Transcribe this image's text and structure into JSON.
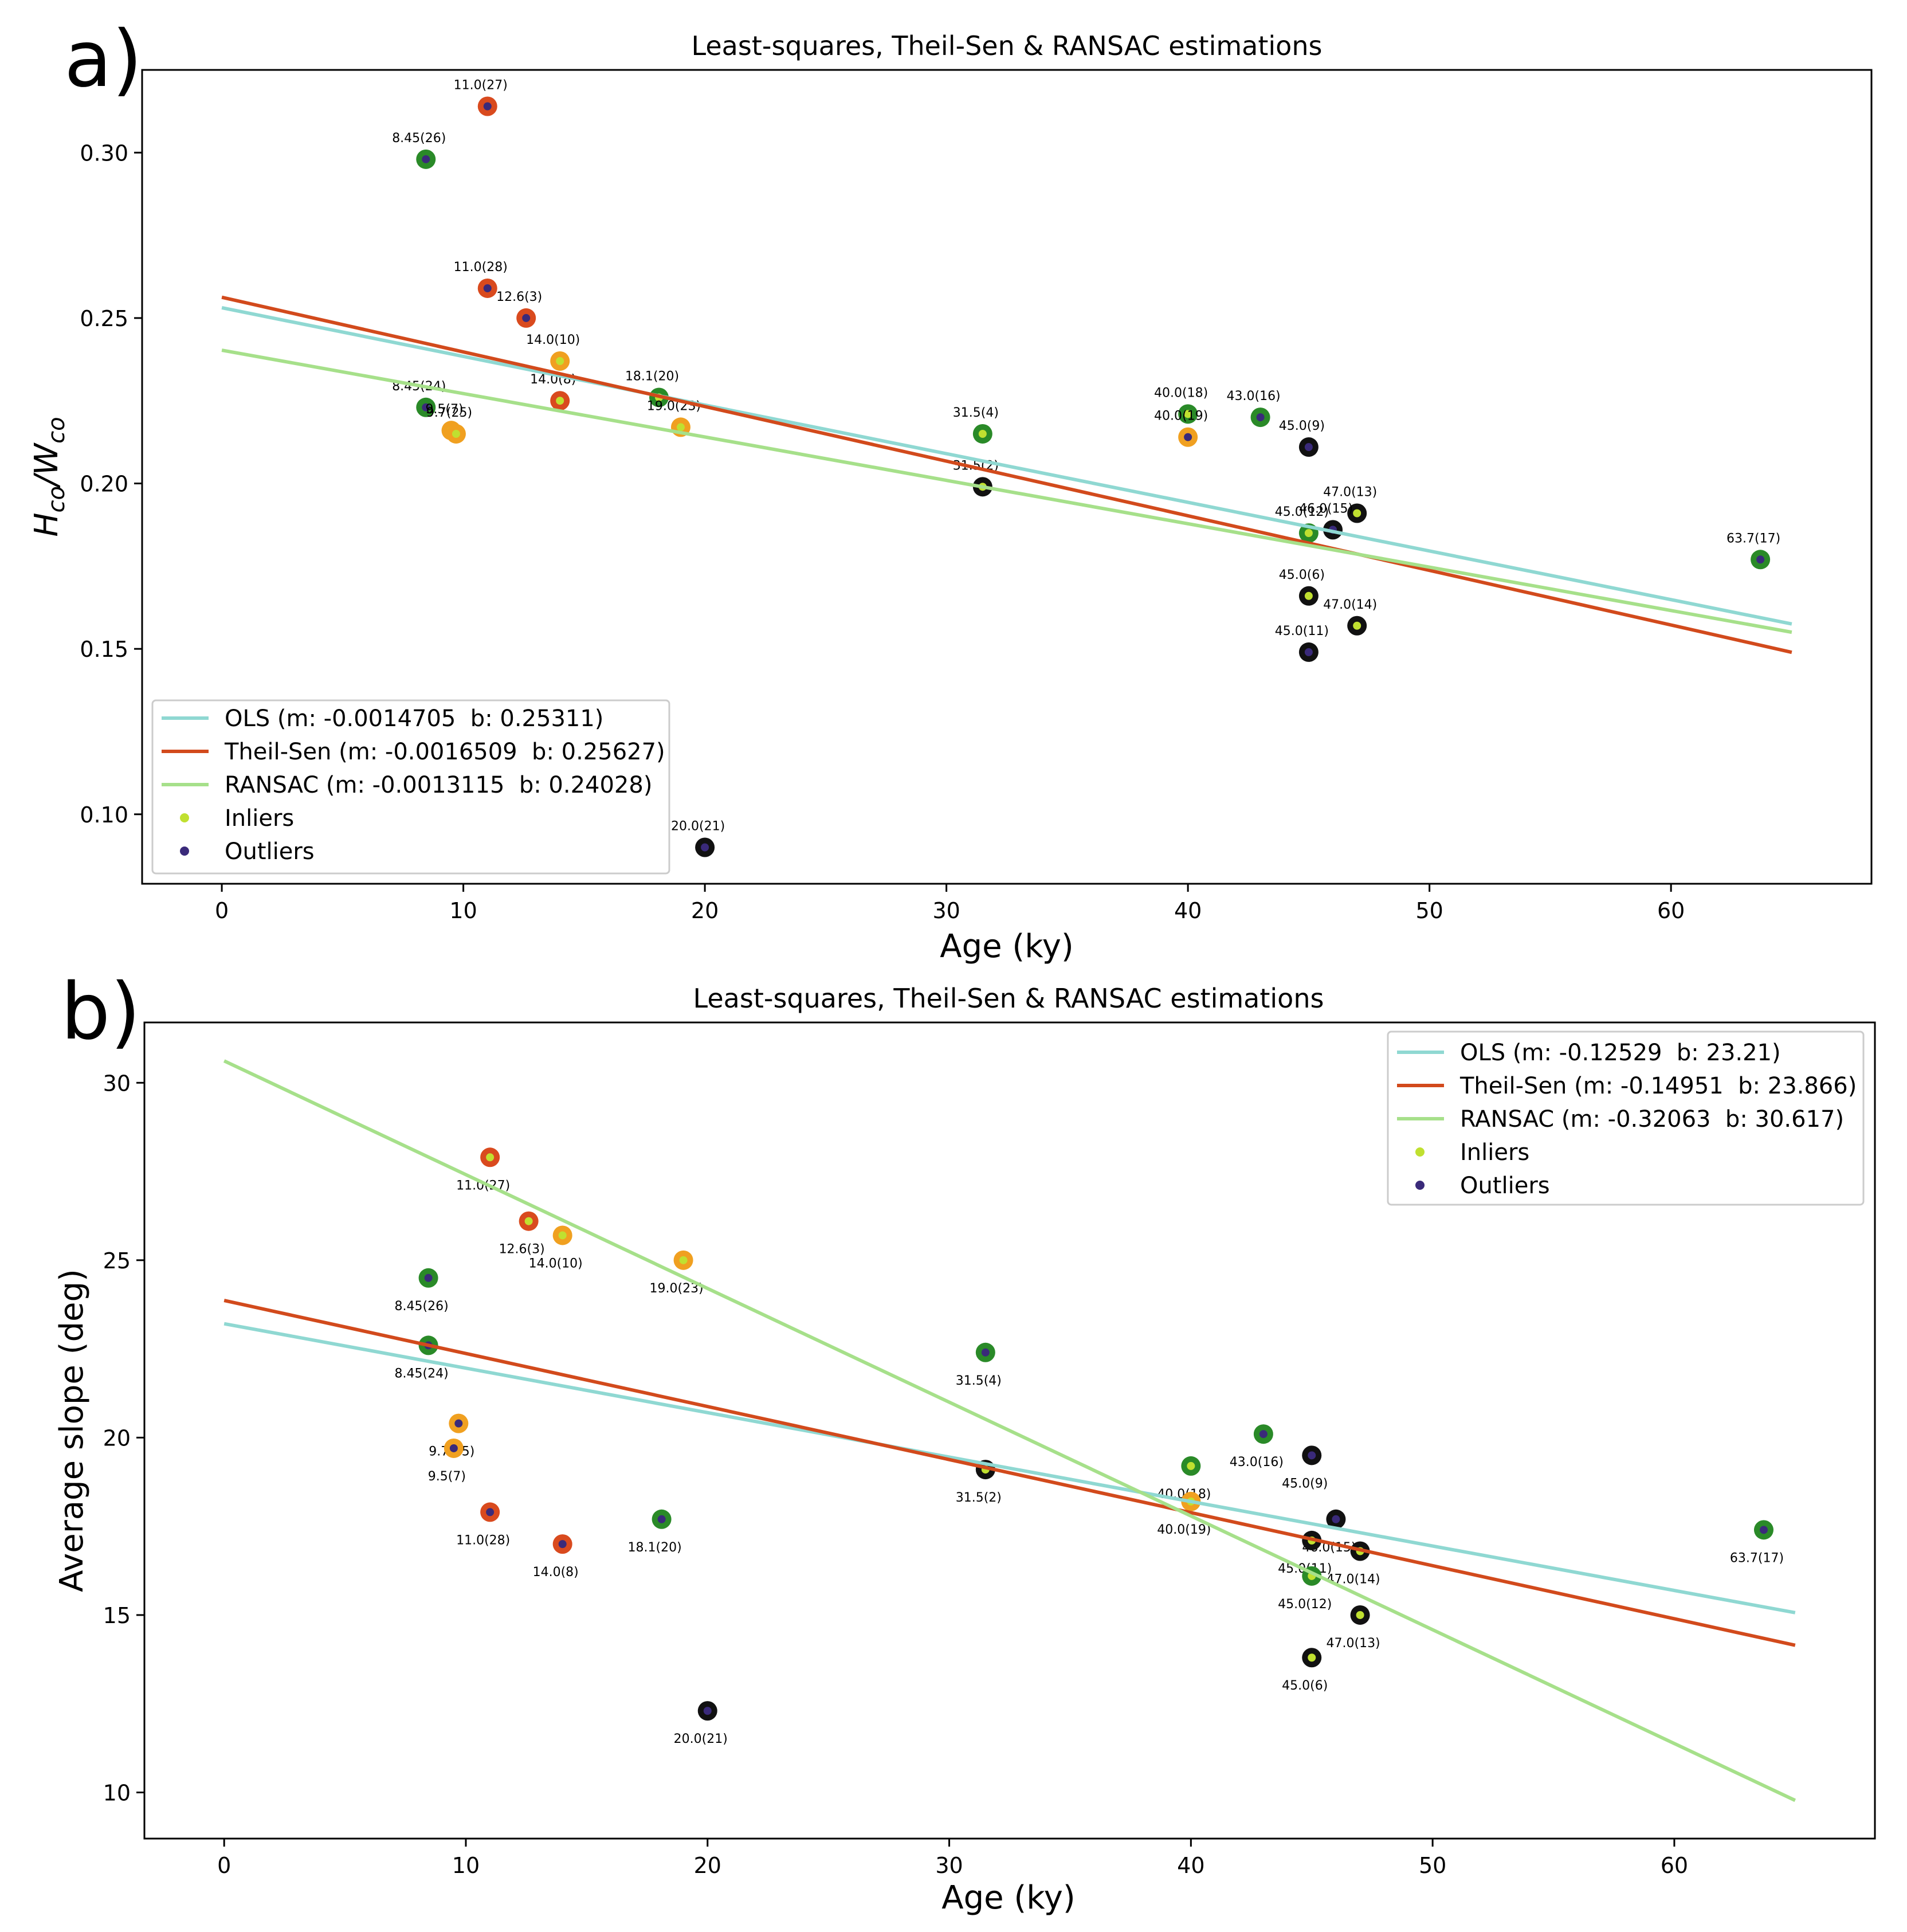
{
  "chart_data": [
    {
      "type": "scatter",
      "panel_label": "a)",
      "title": "Least-squares, Theil-Sen & RANSAC estimations",
      "xlabel": "Age (ky)",
      "ylabel": "H_co/W_co",
      "ylabel_parts": {
        "H": "H",
        "H_sub": "co",
        "slash": "/",
        "W": "W",
        "W_sub": "co"
      },
      "xlim": [
        -3.3,
        68.3
      ],
      "ylim": [
        0.079,
        0.325
      ],
      "xticks": [
        {
          "v": 0,
          "label": "0"
        },
        {
          "v": 10,
          "label": "10"
        },
        {
          "v": 20,
          "label": "20"
        },
        {
          "v": 30,
          "label": "30"
        },
        {
          "v": 40,
          "label": "40"
        },
        {
          "v": 50,
          "label": "50"
        },
        {
          "v": 60,
          "label": "60"
        }
      ],
      "yticks": [
        {
          "v": 0.1,
          "label": "0.10"
        },
        {
          "v": 0.15,
          "label": "0.15"
        },
        {
          "v": 0.2,
          "label": "0.20"
        },
        {
          "v": 0.25,
          "label": "0.25"
        },
        {
          "v": 0.3,
          "label": "0.30"
        }
      ],
      "lines": [
        {
          "name": "OLS",
          "legend": "OLS (m: -0.0014705  b: 0.25311)",
          "m": -0.0014705,
          "b": 0.25311,
          "x0": 0,
          "x1": 65,
          "color": "#8fd8d2"
        },
        {
          "name": "Theil-Sen",
          "legend": "Theil-Sen (m: -0.0016509  b: 0.25627)",
          "m": -0.0016509,
          "b": 0.25627,
          "x0": 0,
          "x1": 65,
          "color": "#d24a1c"
        },
        {
          "name": "RANSAC",
          "legend": "RANSAC (m: -0.0013115  b: 0.24028)",
          "m": -0.0013115,
          "b": 0.24028,
          "x0": 0,
          "x1": 65,
          "color": "#a6e08a"
        }
      ],
      "markers": [
        {
          "name": "Inliers",
          "label": "Inliers",
          "color": "#c0e030"
        },
        {
          "name": "Outliers",
          "label": "Outliers",
          "color": "#3a2a7a"
        }
      ],
      "legend_position": "lower-left",
      "points": [
        {
          "x": 11.0,
          "y": 0.314,
          "label": "11.0(27)",
          "ring": "#d94a1e",
          "dot": "outlier",
          "la": "above"
        },
        {
          "x": 8.45,
          "y": 0.298,
          "label": "8.45(26)",
          "ring": "#2a8a28",
          "dot": "outlier",
          "la": "above"
        },
        {
          "x": 11.0,
          "y": 0.259,
          "label": "11.0(28)",
          "ring": "#d94a1e",
          "dot": "outlier",
          "la": "above"
        },
        {
          "x": 12.6,
          "y": 0.25,
          "label": "12.6(3)",
          "ring": "#d94a1e",
          "dot": "outlier",
          "la": "above"
        },
        {
          "x": 14.0,
          "y": 0.237,
          "label": "14.0(10)",
          "ring": "#f0a020",
          "dot": "inlier",
          "la": "above"
        },
        {
          "x": 14.0,
          "y": 0.225,
          "label": "14.0(8)",
          "ring": "#d94a1e",
          "dot": "inlier",
          "la": "above"
        },
        {
          "x": 18.1,
          "y": 0.226,
          "label": "18.1(20)",
          "ring": "#2a8a28",
          "dot": "inlier",
          "la": "above"
        },
        {
          "x": 19.0,
          "y": 0.217,
          "label": "19.0(23)",
          "ring": "#f0a020",
          "dot": "inlier",
          "la": "above"
        },
        {
          "x": 8.45,
          "y": 0.223,
          "label": "8.45(24)",
          "ring": "#2a8a28",
          "dot": "outlier",
          "la": "above"
        },
        {
          "x": 9.5,
          "y": 0.216,
          "label": "9.5(7)",
          "ring": "#f0a020",
          "dot": "inlier",
          "la": "above"
        },
        {
          "x": 9.7,
          "y": 0.215,
          "label": "9.7(25)",
          "ring": "#f0a020",
          "dot": "inlier",
          "la": "above"
        },
        {
          "x": 31.5,
          "y": 0.215,
          "label": "31.5(4)",
          "ring": "#2a8a28",
          "dot": "inlier",
          "la": "above"
        },
        {
          "x": 31.5,
          "y": 0.199,
          "label": "31.5(2)",
          "ring": "#111111",
          "dot": "inlier",
          "la": "above"
        },
        {
          "x": 40.0,
          "y": 0.221,
          "label": "40.0(18)",
          "ring": "#2a8a28",
          "dot": "inlier",
          "la": "above"
        },
        {
          "x": 40.0,
          "y": 0.214,
          "label": "40.0(19)",
          "ring": "#f0a020",
          "dot": "outlier",
          "la": "above"
        },
        {
          "x": 43.0,
          "y": 0.22,
          "label": "43.0(16)",
          "ring": "#2a8a28",
          "dot": "outlier",
          "la": "above"
        },
        {
          "x": 45.0,
          "y": 0.211,
          "label": "45.0(9)",
          "ring": "#111111",
          "dot": "outlier",
          "la": "above"
        },
        {
          "x": 47.0,
          "y": 0.191,
          "label": "47.0(13)",
          "ring": "#111111",
          "dot": "inlier",
          "la": "above"
        },
        {
          "x": 45.0,
          "y": 0.185,
          "label": "45.0(12)",
          "ring": "#2a8a28",
          "dot": "inlier",
          "la": "above"
        },
        {
          "x": 46.0,
          "y": 0.186,
          "label": "46.0(15)",
          "ring": "#111111",
          "dot": "outlier",
          "la": "above"
        },
        {
          "x": 63.7,
          "y": 0.177,
          "label": "63.7(17)",
          "ring": "#2a8a28",
          "dot": "outlier",
          "la": "above"
        },
        {
          "x": 45.0,
          "y": 0.166,
          "label": "45.0(6)",
          "ring": "#111111",
          "dot": "inlier",
          "la": "above"
        },
        {
          "x": 47.0,
          "y": 0.157,
          "label": "47.0(14)",
          "ring": "#111111",
          "dot": "inlier",
          "la": "above"
        },
        {
          "x": 45.0,
          "y": 0.149,
          "label": "45.0(11)",
          "ring": "#111111",
          "dot": "outlier",
          "la": "above"
        },
        {
          "x": 20.0,
          "y": 0.09,
          "label": "20.0(21)",
          "ring": "#111111",
          "dot": "outlier",
          "la": "above"
        }
      ]
    },
    {
      "type": "scatter",
      "panel_label": "b)",
      "title": "Least-squares, Theil-Sen & RANSAC estimations",
      "xlabel": "Age (ky)",
      "ylabel": "Average slope (deg)",
      "xlim": [
        -3.3,
        68.3
      ],
      "ylim": [
        8.7,
        31.7
      ],
      "xticks": [
        {
          "v": 0,
          "label": "0"
        },
        {
          "v": 10,
          "label": "10"
        },
        {
          "v": 20,
          "label": "20"
        },
        {
          "v": 30,
          "label": "30"
        },
        {
          "v": 40,
          "label": "40"
        },
        {
          "v": 50,
          "label": "50"
        },
        {
          "v": 60,
          "label": "60"
        }
      ],
      "yticks": [
        {
          "v": 10,
          "label": "10"
        },
        {
          "v": 15,
          "label": "15"
        },
        {
          "v": 20,
          "label": "20"
        },
        {
          "v": 25,
          "label": "25"
        },
        {
          "v": 30,
          "label": "30"
        }
      ],
      "lines": [
        {
          "name": "OLS",
          "legend": "OLS (m: -0.12529  b: 23.21)",
          "m": -0.12529,
          "b": 23.21,
          "x0": 0,
          "x1": 65,
          "color": "#8fd8d2"
        },
        {
          "name": "Theil-Sen",
          "legend": "Theil-Sen (m: -0.14951  b: 23.866)",
          "m": -0.14951,
          "b": 23.866,
          "x0": 0,
          "x1": 65,
          "color": "#d24a1c"
        },
        {
          "name": "RANSAC",
          "legend": "RANSAC (m: -0.32063  b: 30.617)",
          "m": -0.32063,
          "b": 30.617,
          "x0": 0,
          "x1": 65,
          "color": "#a6e08a"
        }
      ],
      "markers": [
        {
          "name": "Inliers",
          "label": "Inliers",
          "color": "#c0e030"
        },
        {
          "name": "Outliers",
          "label": "Outliers",
          "color": "#3a2a7a"
        }
      ],
      "legend_position": "upper-right",
      "points": [
        {
          "x": 11.0,
          "y": 27.9,
          "label": "11.0(27)",
          "ring": "#d94a1e",
          "dot": "inlier",
          "la": "below"
        },
        {
          "x": 12.6,
          "y": 26.1,
          "label": "12.6(3)",
          "ring": "#d94a1e",
          "dot": "inlier",
          "la": "below"
        },
        {
          "x": 14.0,
          "y": 25.7,
          "label": "14.0(10)",
          "ring": "#f0a020",
          "dot": "inlier",
          "la": "below"
        },
        {
          "x": 19.0,
          "y": 25.0,
          "label": "19.0(23)",
          "ring": "#f0a020",
          "dot": "inlier",
          "la": "below"
        },
        {
          "x": 8.45,
          "y": 24.5,
          "label": "8.45(26)",
          "ring": "#2a8a28",
          "dot": "outlier",
          "la": "below"
        },
        {
          "x": 8.45,
          "y": 22.6,
          "label": "8.45(24)",
          "ring": "#2a8a28",
          "dot": "outlier",
          "la": "below"
        },
        {
          "x": 31.5,
          "y": 22.4,
          "label": "31.5(4)",
          "ring": "#2a8a28",
          "dot": "outlier",
          "la": "below"
        },
        {
          "x": 9.7,
          "y": 20.4,
          "label": "9.7(25)",
          "ring": "#f0a020",
          "dot": "outlier",
          "la": "below"
        },
        {
          "x": 9.5,
          "y": 19.7,
          "label": "9.5(7)",
          "ring": "#f0a020",
          "dot": "outlier",
          "la": "below"
        },
        {
          "x": 11.0,
          "y": 17.9,
          "label": "11.0(28)",
          "ring": "#d94a1e",
          "dot": "outlier",
          "la": "below"
        },
        {
          "x": 14.0,
          "y": 17.0,
          "label": "14.0(8)",
          "ring": "#d94a1e",
          "dot": "outlier",
          "la": "below"
        },
        {
          "x": 18.1,
          "y": 17.7,
          "label": "18.1(20)",
          "ring": "#2a8a28",
          "dot": "outlier",
          "la": "below"
        },
        {
          "x": 31.5,
          "y": 19.1,
          "label": "31.5(2)",
          "ring": "#111111",
          "dot": "inlier",
          "la": "below"
        },
        {
          "x": 40.0,
          "y": 19.2,
          "label": "40.0(18)",
          "ring": "#2a8a28",
          "dot": "inlier",
          "la": "below"
        },
        {
          "x": 40.0,
          "y": 18.2,
          "label": "40.0(19)",
          "ring": "#f0a020",
          "dot": "inlier",
          "la": "below"
        },
        {
          "x": 43.0,
          "y": 20.1,
          "label": "43.0(16)",
          "ring": "#2a8a28",
          "dot": "outlier",
          "la": "below"
        },
        {
          "x": 45.0,
          "y": 19.5,
          "label": "45.0(9)",
          "ring": "#111111",
          "dot": "outlier",
          "la": "below"
        },
        {
          "x": 46.0,
          "y": 17.7,
          "label": "46.0(15)",
          "ring": "#111111",
          "dot": "outlier",
          "la": "below"
        },
        {
          "x": 45.0,
          "y": 17.1,
          "label": "45.0(11)",
          "ring": "#111111",
          "dot": "inlier",
          "la": "below"
        },
        {
          "x": 47.0,
          "y": 16.8,
          "label": "47.0(14)",
          "ring": "#111111",
          "dot": "inlier",
          "la": "below"
        },
        {
          "x": 45.0,
          "y": 16.1,
          "label": "45.0(12)",
          "ring": "#2a8a28",
          "dot": "inlier",
          "la": "below"
        },
        {
          "x": 47.0,
          "y": 15.0,
          "label": "47.0(13)",
          "ring": "#111111",
          "dot": "inlier",
          "la": "below"
        },
        {
          "x": 45.0,
          "y": 13.8,
          "label": "45.0(6)",
          "ring": "#111111",
          "dot": "inlier",
          "la": "below"
        },
        {
          "x": 63.7,
          "y": 17.4,
          "label": "63.7(17)",
          "ring": "#2a8a28",
          "dot": "outlier",
          "la": "below"
        },
        {
          "x": 20.0,
          "y": 12.3,
          "label": "20.0(21)",
          "ring": "#111111",
          "dot": "outlier",
          "la": "below"
        }
      ]
    }
  ]
}
